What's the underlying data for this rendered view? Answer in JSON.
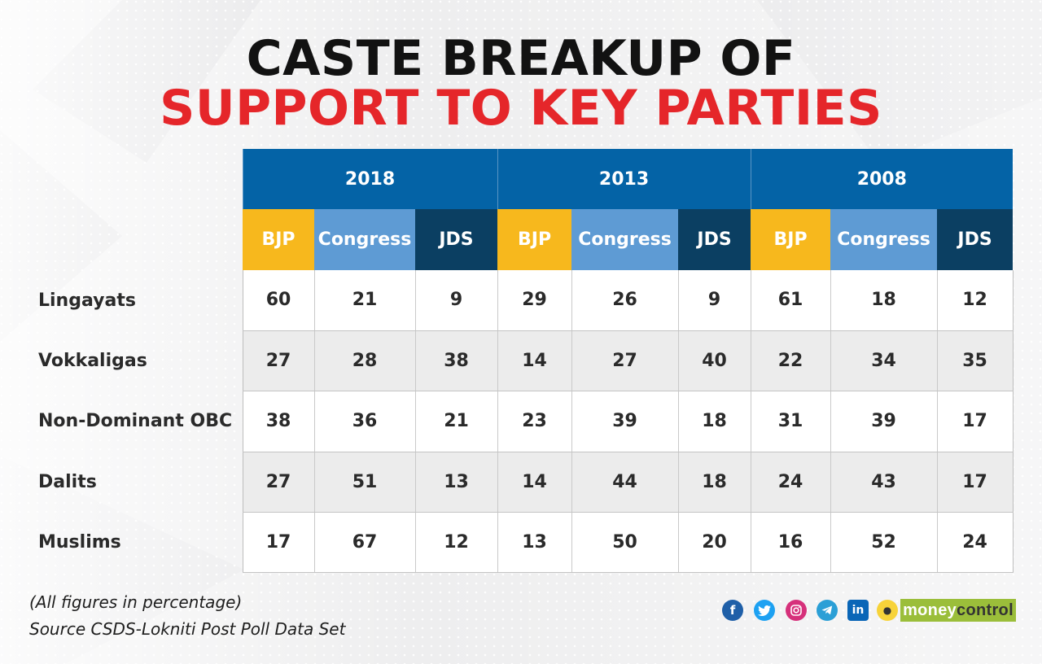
{
  "title": {
    "line1": "CASTE BREAKUP OF",
    "line2": "SUPPORT TO KEY PARTIES"
  },
  "colors": {
    "title_black": "#121212",
    "title_red": "#e5262a",
    "year_header": "#0463a6",
    "BJP": "#f7b81d",
    "Congress": "#5e9bd4",
    "JDS": "#0b3f62"
  },
  "chart_data": {
    "type": "table",
    "years": [
      "2018",
      "2013",
      "2008"
    ],
    "parties": [
      "BJP",
      "Congress",
      "JDS"
    ],
    "rows": [
      {
        "label": "Lingayats",
        "values": [
          60,
          21,
          9,
          29,
          26,
          9,
          61,
          18,
          12
        ]
      },
      {
        "label": "Vokkaligas",
        "values": [
          27,
          28,
          38,
          14,
          27,
          40,
          22,
          34,
          35
        ]
      },
      {
        "label": "Non-Dominant OBC",
        "values": [
          38,
          36,
          21,
          23,
          39,
          18,
          31,
          39,
          17
        ]
      },
      {
        "label": "Dalits",
        "values": [
          27,
          51,
          13,
          14,
          44,
          18,
          24,
          43,
          17
        ]
      },
      {
        "label": "Muslims",
        "values": [
          17,
          67,
          12,
          13,
          50,
          20,
          16,
          52,
          24
        ]
      }
    ]
  },
  "footer": {
    "note": "(All figures in percentage)",
    "source": "Source CSDS-Lokniti Post Poll Data Set"
  },
  "social_icons": [
    "facebook-icon",
    "twitter-icon",
    "instagram-icon",
    "telegram-icon",
    "linkedin-icon",
    "koo-icon"
  ],
  "brand": {
    "part1": "money",
    "part2": "control"
  }
}
